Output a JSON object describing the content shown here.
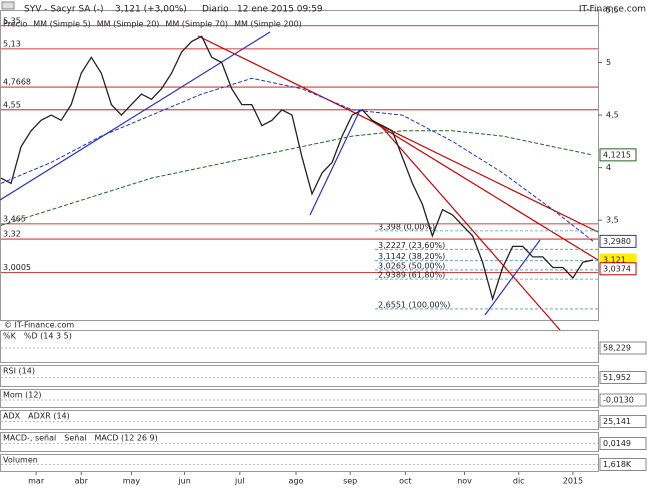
{
  "chart_data": {
    "type": "line",
    "title": "SYV - Sacyr SA (-)",
    "quote": "3,121 (+3,00%)",
    "period": "Diario",
    "timestamp": "12 ene 2015 09:59",
    "brand": "IT-Finance.com",
    "watermark": "© IT-Finance.com",
    "legend": [
      "Precio",
      "MM (Simple 5)",
      "MM (Simple 20)",
      "MM (Simple 70)",
      "MM (Simple 200)"
    ],
    "legend_colors": [
      "#333333",
      "#9aa0d0",
      "#cc0000",
      "#0000cc",
      "#006600"
    ],
    "series": [
      {
        "name": "Precio",
        "color": "#222222",
        "values": [
          3.9,
          3.85,
          4.2,
          4.35,
          4.45,
          4.5,
          4.45,
          4.6,
          4.9,
          5.05,
          4.9,
          4.6,
          4.5,
          4.6,
          4.7,
          4.65,
          4.75,
          4.9,
          5.1,
          5.2,
          5.25,
          5.05,
          5.0,
          4.75,
          4.6,
          4.6,
          4.4,
          4.45,
          4.55,
          4.5,
          4.1,
          3.75,
          3.95,
          4.05,
          4.3,
          4.5,
          4.55,
          4.45,
          4.4,
          4.35,
          4.1,
          3.85,
          3.65,
          3.35,
          3.6,
          3.55,
          3.45,
          3.35,
          3.1,
          2.75,
          3.05,
          3.25,
          3.25,
          3.15,
          3.15,
          3.05,
          3.05,
          2.95,
          3.1,
          3.121
        ]
      },
      {
        "name": "MM (Simple 70)",
        "color": "#2233cc",
        "x": [
          0,
          5,
          10,
          15,
          20,
          25,
          30,
          35,
          40,
          45,
          50,
          55,
          59
        ],
        "values": [
          3.85,
          4.05,
          4.3,
          4.5,
          4.7,
          4.85,
          4.75,
          4.55,
          4.5,
          4.25,
          3.95,
          3.6,
          3.3
        ]
      },
      {
        "name": "MM (Simple 200)",
        "color": "#226622",
        "x": [
          0,
          5,
          10,
          15,
          20,
          25,
          30,
          35,
          40,
          45,
          50,
          55,
          59
        ],
        "values": [
          3.45,
          3.6,
          3.75,
          3.9,
          4.0,
          4.1,
          4.2,
          4.3,
          4.35,
          4.35,
          4.3,
          4.2,
          4.12
        ]
      }
    ],
    "xlim": [
      0,
      59.5
    ],
    "xticks": [
      {
        "value": 3.5,
        "label": "mar"
      },
      {
        "value": 8,
        "label": "abr"
      },
      {
        "value": 13,
        "label": "may"
      },
      {
        "value": 18.3,
        "label": "jun"
      },
      {
        "value": 23.8,
        "label": "jul"
      },
      {
        "value": 29.4,
        "label": "ago"
      },
      {
        "value": 34.8,
        "label": "sep"
      },
      {
        "value": 40.3,
        "label": "oct"
      },
      {
        "value": 46.2,
        "label": "nov"
      },
      {
        "value": 51.6,
        "label": "dic"
      },
      {
        "value": 57,
        "label": "2015"
      }
    ],
    "ylim": [
      2.55,
      5.5
    ],
    "yticks": [
      {
        "value": 5.5,
        "label": "5,5"
      },
      {
        "value": 5,
        "label": "5"
      },
      {
        "value": 4.5,
        "label": "4,5"
      },
      {
        "value": 4,
        "label": "4"
      },
      {
        "value": 3.5,
        "label": "3,5"
      }
    ],
    "levels": [
      {
        "value": 5.35,
        "label": "5,35"
      },
      {
        "value": 5.13,
        "label": "5,13"
      },
      {
        "value": 4.7668,
        "label": "4,7668"
      },
      {
        "value": 4.55,
        "label": "4,55"
      },
      {
        "value": 3.465,
        "label": "3,465"
      },
      {
        "value": 3.32,
        "label": "3,32"
      },
      {
        "value": 3.0005,
        "label": "3,0005"
      }
    ],
    "fibonacci": [
      {
        "value": 3.398,
        "label": "3,398 (0,00%)"
      },
      {
        "value": 3.2227,
        "label": "3,2227 (23,60%)"
      },
      {
        "value": 3.1142,
        "label": "3,1142 (38,20%)"
      },
      {
        "value": 3.0265,
        "label": "3,0265 (50,00%)"
      },
      {
        "value": 2.9389,
        "label": "2,9389 (61,80%)"
      },
      {
        "value": 2.6551,
        "label": "2,6551 (100,00%)"
      }
    ],
    "last_values": [
      {
        "value": 4.1215,
        "label": "4,1215",
        "color": "#226622"
      },
      {
        "value": 3.298,
        "label": "3,2980",
        "color": "#2233cc"
      },
      {
        "value": 3.121,
        "label": "3,121",
        "color": "#ffee00"
      },
      {
        "value": 3.0374,
        "label": "3,0374",
        "color": "#cc0000"
      }
    ],
    "indicators": [
      {
        "labels": [
          "%K",
          "%D (14 3 5)"
        ],
        "last": "58,229"
      },
      {
        "labels": [
          "RSI (14)"
        ],
        "last": "51,952"
      },
      {
        "labels": [
          "Mom (12)"
        ],
        "last": "-0,0130"
      },
      {
        "labels": [
          "ADX",
          "ADXR (14)"
        ],
        "last": "25,141"
      },
      {
        "labels": [
          "MACD-, señal",
          "Señal",
          "MACD (12 26 9)"
        ],
        "last": "0,0149"
      },
      {
        "labels": [
          "Volumen"
        ],
        "last": "1,618K"
      }
    ]
  }
}
